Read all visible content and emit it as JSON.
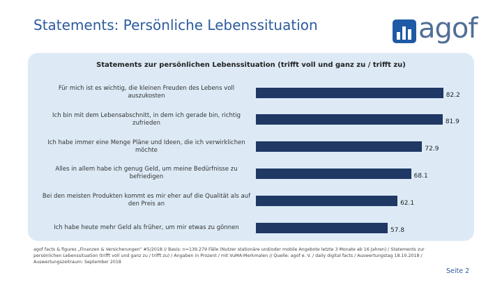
{
  "header": {
    "title": "Statements: Persönliche Lebenssituation",
    "logo": "agof"
  },
  "chart_data": {
    "type": "bar",
    "orientation": "horizontal",
    "title": "Statements zur persönlichen Lebenssituation (trifft voll und ganz zu / trifft zu)",
    "categories": [
      "Für mich ist es wichtig, die kleinen Freuden des Lebens voll auszukosten",
      "Ich bin mit dem Lebensabschnitt, in dem ich gerade bin, richtig zufrieden",
      "Ich habe immer eine Menge Pläne und Ideen, die ich verwirklichen möchte",
      "Alles in allem habe ich genug Geld, um meine Bedürfnisse zu befriedigen",
      "Bei den meisten Produkten kommt es mir eher auf die Qualität als auf den Preis an",
      "Ich habe heute mehr Geld als früher, um mir etwas zu gönnen"
    ],
    "values": [
      82.2,
      81.9,
      72.9,
      68.1,
      62.1,
      57.8
    ],
    "color": "#1f3864"
  },
  "footer": {
    "note": "agof facts & figures „Finanzen & Versicherungen“ #5/2018 // Basis: n=139.279 Fälle (Nutzer stationäre und/oder mobile Angebote letzte 3 Monate ab 16 Jahren) / Statements zur persönlichen Lebenssituation (trifft voll und ganz zu / trifft zu) / Angaben in Prozent / mit VuMA-Merkmalen // Quelle: agof e. V. / daily digital facts / Auswertungstag 18.10.2018 / Auswertungszeitraum: September 2018",
    "page": "Seite 2"
  }
}
